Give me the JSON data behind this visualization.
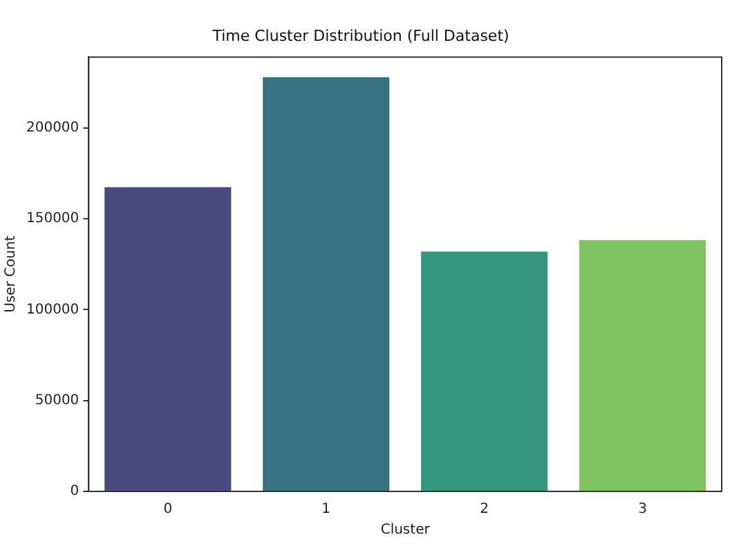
{
  "chart_data": {
    "type": "bar",
    "title": "Time Cluster Distribution (Full Dataset)",
    "xlabel": "Cluster",
    "ylabel": "User Count",
    "categories": [
      "0",
      "1",
      "2",
      "3"
    ],
    "values": [
      167400,
      227900,
      132000,
      138200
    ],
    "colors": [
      "#4a4a7e",
      "#38717f",
      "#35977b",
      "#7fc362"
    ],
    "ylim": [
      0,
      239000
    ],
    "yticks": [
      0,
      50000,
      100000,
      150000,
      200000
    ],
    "grid": false
  }
}
